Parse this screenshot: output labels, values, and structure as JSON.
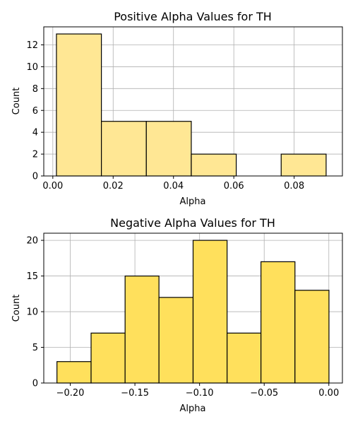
{
  "chart_data": [
    {
      "type": "histogram",
      "title": "Positive Alpha Values for TH",
      "xlabel": "Alpha",
      "ylabel": "Count",
      "xlim": [
        -0.003,
        0.096
      ],
      "ylim": [
        0,
        13.65
      ],
      "xticks": [
        0.0,
        0.02,
        0.04,
        0.06,
        0.08
      ],
      "xtick_labels": [
        "0.00",
        "0.02",
        "0.04",
        "0.06",
        "0.08"
      ],
      "yticks": [
        0,
        2,
        4,
        6,
        8,
        10,
        12
      ],
      "ytick_labels": [
        "0",
        "2",
        "4",
        "6",
        "8",
        "10",
        "12"
      ],
      "grid": true,
      "bar_color": "#ffe794",
      "bins": [
        {
          "x0": 0.0012,
          "x1": 0.0161,
          "value": 13
        },
        {
          "x0": 0.0161,
          "x1": 0.031,
          "value": 5
        },
        {
          "x0": 0.031,
          "x1": 0.0459,
          "value": 5
        },
        {
          "x0": 0.0459,
          "x1": 0.0608,
          "value": 2
        },
        {
          "x0": 0.0608,
          "x1": 0.0757,
          "value": 0
        },
        {
          "x0": 0.0757,
          "x1": 0.0906,
          "value": 2
        }
      ]
    },
    {
      "type": "histogram",
      "title": "Negative Alpha Values for TH",
      "xlabel": "Alpha",
      "ylabel": "Count",
      "xlim": [
        -0.2205,
        0.0105
      ],
      "ylim": [
        0,
        21
      ],
      "xticks": [
        -0.2,
        -0.15,
        -0.1,
        -0.05,
        0.0
      ],
      "xtick_labels": [
        "−0.20",
        "−0.15",
        "−0.10",
        "−0.05",
        "0.00"
      ],
      "yticks": [
        0,
        5,
        10,
        15,
        20
      ],
      "ytick_labels": [
        "0",
        "5",
        "10",
        "15",
        "20"
      ],
      "grid": true,
      "bar_color": "#ffe05c",
      "bins": [
        {
          "x0": -0.2103,
          "x1": -0.1839,
          "value": 3
        },
        {
          "x0": -0.1839,
          "x1": -0.1576,
          "value": 7
        },
        {
          "x0": -0.1576,
          "x1": -0.1314,
          "value": 15
        },
        {
          "x0": -0.1314,
          "x1": -0.105,
          "value": 12
        },
        {
          "x0": -0.105,
          "x1": -0.0787,
          "value": 20
        },
        {
          "x0": -0.0787,
          "x1": -0.0525,
          "value": 7
        },
        {
          "x0": -0.0525,
          "x1": -0.0262,
          "value": 17
        },
        {
          "x0": -0.0262,
          "x1": 0.0001,
          "value": 13
        }
      ]
    }
  ]
}
